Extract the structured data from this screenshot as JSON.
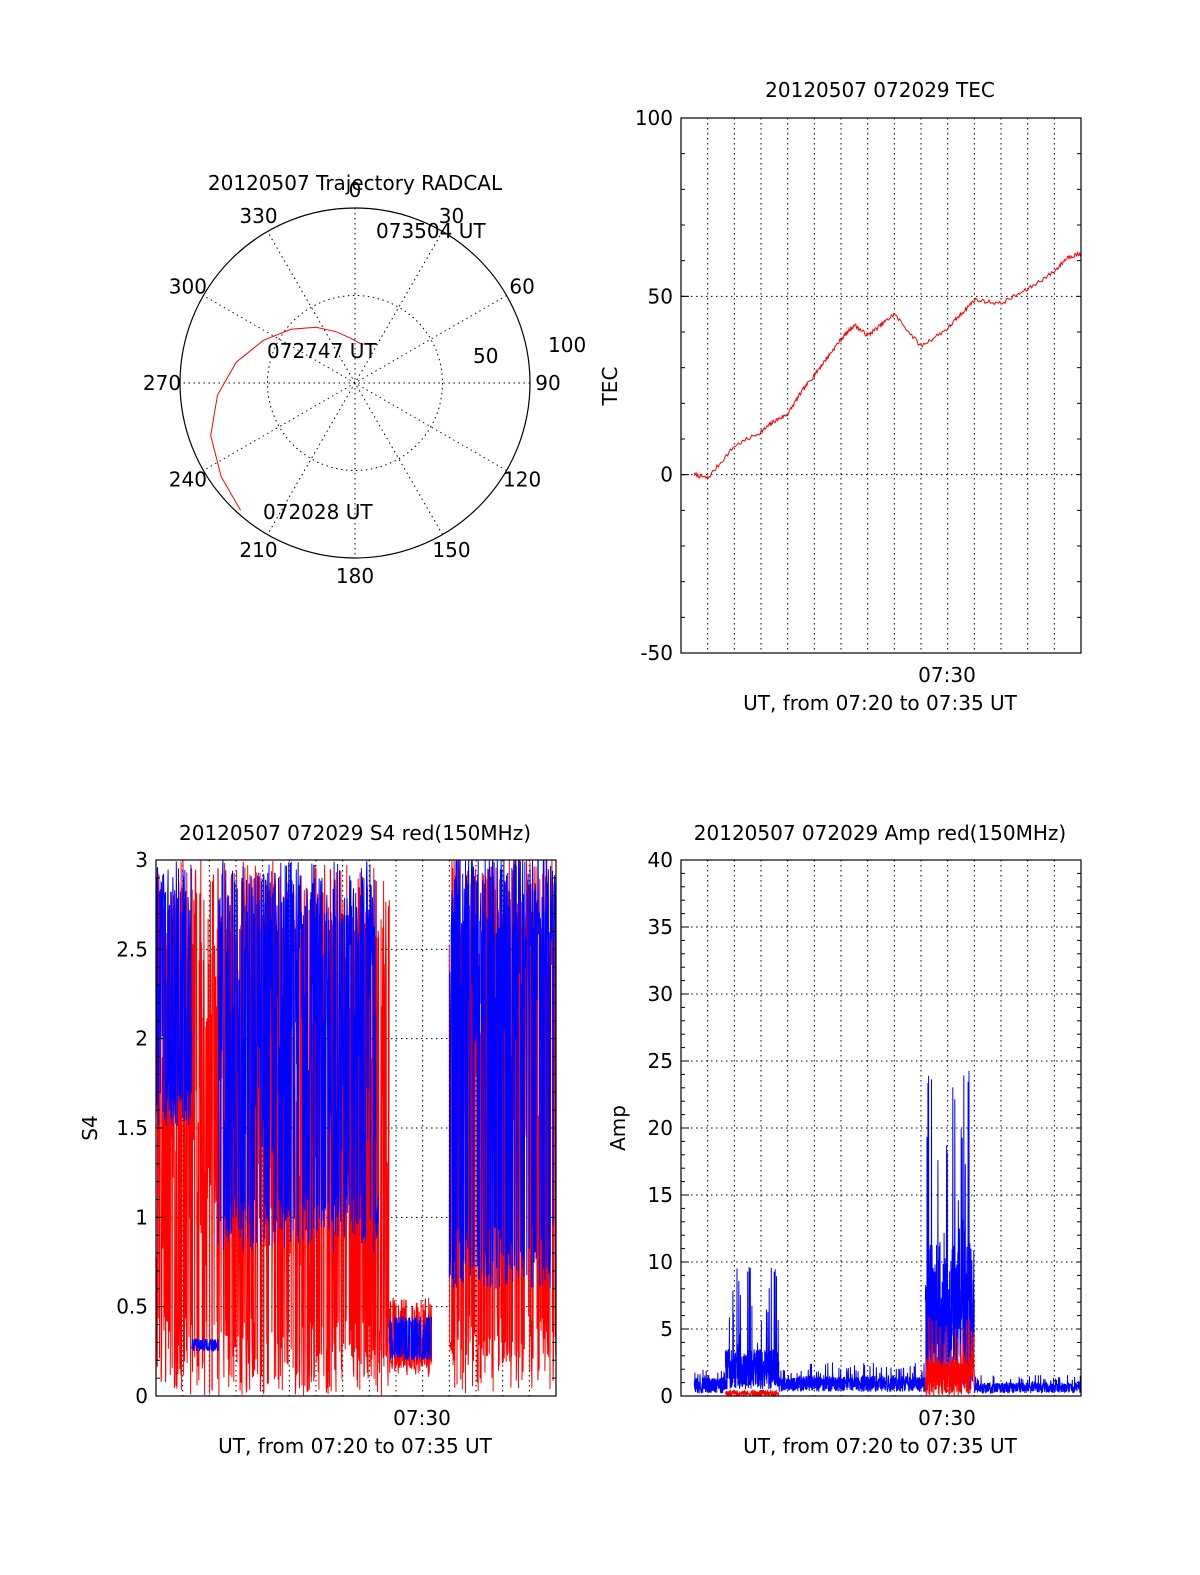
{
  "colors": {
    "red": "#ff0000",
    "blue": "#0000ff",
    "axis": "#000000"
  },
  "chart_data": [
    {
      "id": "trajectory",
      "type": "polar",
      "title": "20120507 Trajectory RADCAL",
      "angle_labels": [
        "0",
        "30",
        "60",
        "90",
        "120",
        "150",
        "180",
        "210",
        "240",
        "270",
        "300",
        "330"
      ],
      "radial_labels": [
        "50",
        "100"
      ],
      "rmax": 100,
      "annotations": [
        "073504 UT",
        "072747 UT",
        "072028 UT"
      ],
      "track": {
        "color": "red",
        "points": [
          {
            "azimuth": 222,
            "elevation": 2
          },
          {
            "azimuth": 235,
            "elevation": 6
          },
          {
            "azimuth": 250,
            "elevation": 11
          },
          {
            "azimuth": 265,
            "elevation": 19
          },
          {
            "azimuth": 280,
            "elevation": 28
          },
          {
            "azimuth": 295,
            "elevation": 38
          },
          {
            "azimuth": 310,
            "elevation": 47
          },
          {
            "azimuth": 325,
            "elevation": 55
          },
          {
            "azimuth": 340,
            "elevation": 62
          },
          {
            "azimuth": 355,
            "elevation": 67
          },
          {
            "azimuth": 12,
            "elevation": 70
          }
        ]
      }
    },
    {
      "id": "tec",
      "type": "line",
      "title": "20120507 072029 TEC",
      "ylabel": "TEC",
      "xlabel": "UT, from 07:20 to 07:35 UT",
      "x_tick_label": "07:30",
      "xlim": [
        "07:20",
        "07:35"
      ],
      "ylim": [
        -50,
        100
      ],
      "y_ticks": [
        "-50",
        "0",
        "50",
        "100"
      ],
      "grid": true,
      "series": [
        {
          "color": "red",
          "x": [
            "07:20:30",
            "07:21:00",
            "07:22:00",
            "07:23:00",
            "07:23:30",
            "07:24:00",
            "07:24:30",
            "07:25:00",
            "07:25:30",
            "07:26:00",
            "07:26:30",
            "07:27:00",
            "07:27:30",
            "07:28:00",
            "07:29:00",
            "07:30:00",
            "07:30:30",
            "07:31:00",
            "07:32:00",
            "07:33:00",
            "07:34:00",
            "07:34:30",
            "07:35:00"
          ],
          "values": [
            0,
            -1,
            8,
            12,
            15,
            17,
            23,
            28,
            33,
            38,
            42,
            39,
            42,
            45,
            36,
            41,
            45,
            49,
            48,
            52,
            57,
            61,
            62
          ]
        }
      ]
    },
    {
      "id": "s4",
      "type": "line",
      "title": "20120507 072029 S4 red(150MHz)",
      "ylabel": "S4",
      "xlabel": "UT, from 07:20 to 07:35 UT",
      "x_tick_label": "07:30",
      "xlim": [
        "07:20",
        "07:35"
      ],
      "ylim": [
        0,
        3
      ],
      "y_ticks": [
        "0",
        "0.5",
        "1",
        "1.5",
        "2",
        "2.5",
        "3"
      ],
      "grid": true,
      "series": [
        {
          "color": "red",
          "description_segments": [
            {
              "from": "07:20:00",
              "to": "07:28:45",
              "min": 0,
              "max": 3,
              "base": 1.6
            },
            {
              "from": "07:28:45",
              "to": "07:30:20",
              "min": 0.15,
              "max": 0.55,
              "base": 0.22
            },
            {
              "from": "07:31:00",
              "to": "07:35:00",
              "min": 0,
              "max": 3,
              "base": 2.2
            }
          ]
        },
        {
          "color": "blue",
          "description_segments": [
            {
              "from": "07:20:00",
              "to": "07:21:20",
              "min": 1.5,
              "max": 3,
              "base": 2.0
            },
            {
              "from": "07:21:20",
              "to": "07:22:20",
              "min": 0.25,
              "max": 0.32,
              "base": 0.28
            },
            {
              "from": "07:22:20",
              "to": "07:28:20",
              "min": 0.8,
              "max": 3,
              "base": 2.0
            },
            {
              "from": "07:28:45",
              "to": "07:30:20",
              "min": 0.2,
              "max": 0.45,
              "base": 0.3
            },
            {
              "from": "07:31:00",
              "to": "07:35:00",
              "min": 0.6,
              "max": 3,
              "base": 2.6
            }
          ]
        }
      ]
    },
    {
      "id": "amp",
      "type": "line",
      "title": "20120507 072029 Amp red(150MHz)",
      "ylabel": "Amp",
      "xlabel": "UT, from 07:20 to 07:35 UT",
      "x_tick_label": "07:30",
      "xlim": [
        "07:20",
        "07:35"
      ],
      "ylim": [
        0,
        40
      ],
      "y_ticks": [
        "0",
        "5",
        "10",
        "15",
        "20",
        "25",
        "30",
        "35",
        "40"
      ],
      "grid": true,
      "series": [
        {
          "color": "blue",
          "description_segments": [
            {
              "from": "07:20:30",
              "to": "07:21:40",
              "min": 0.2,
              "max": 2,
              "base": 0.8
            },
            {
              "from": "07:21:40",
              "to": "07:23:40",
              "min": 0.5,
              "max": 10,
              "base": 2
            },
            {
              "from": "07:23:40",
              "to": "07:29:10",
              "min": 0.3,
              "max": 2.5,
              "base": 0.9
            },
            {
              "from": "07:29:10",
              "to": "07:31:00",
              "min": 0.5,
              "max": 24.5,
              "base": 6
            },
            {
              "from": "07:31:00",
              "to": "07:35:00",
              "min": 0.2,
              "max": 1.6,
              "base": 0.6
            }
          ]
        },
        {
          "color": "red",
          "description_segments": [
            {
              "from": "07:21:40",
              "to": "07:23:40",
              "min": 0,
              "max": 0.5,
              "base": 0.2
            },
            {
              "from": "07:29:10",
              "to": "07:31:00",
              "min": 0,
              "max": 6,
              "base": 1.5
            }
          ]
        }
      ]
    }
  ]
}
